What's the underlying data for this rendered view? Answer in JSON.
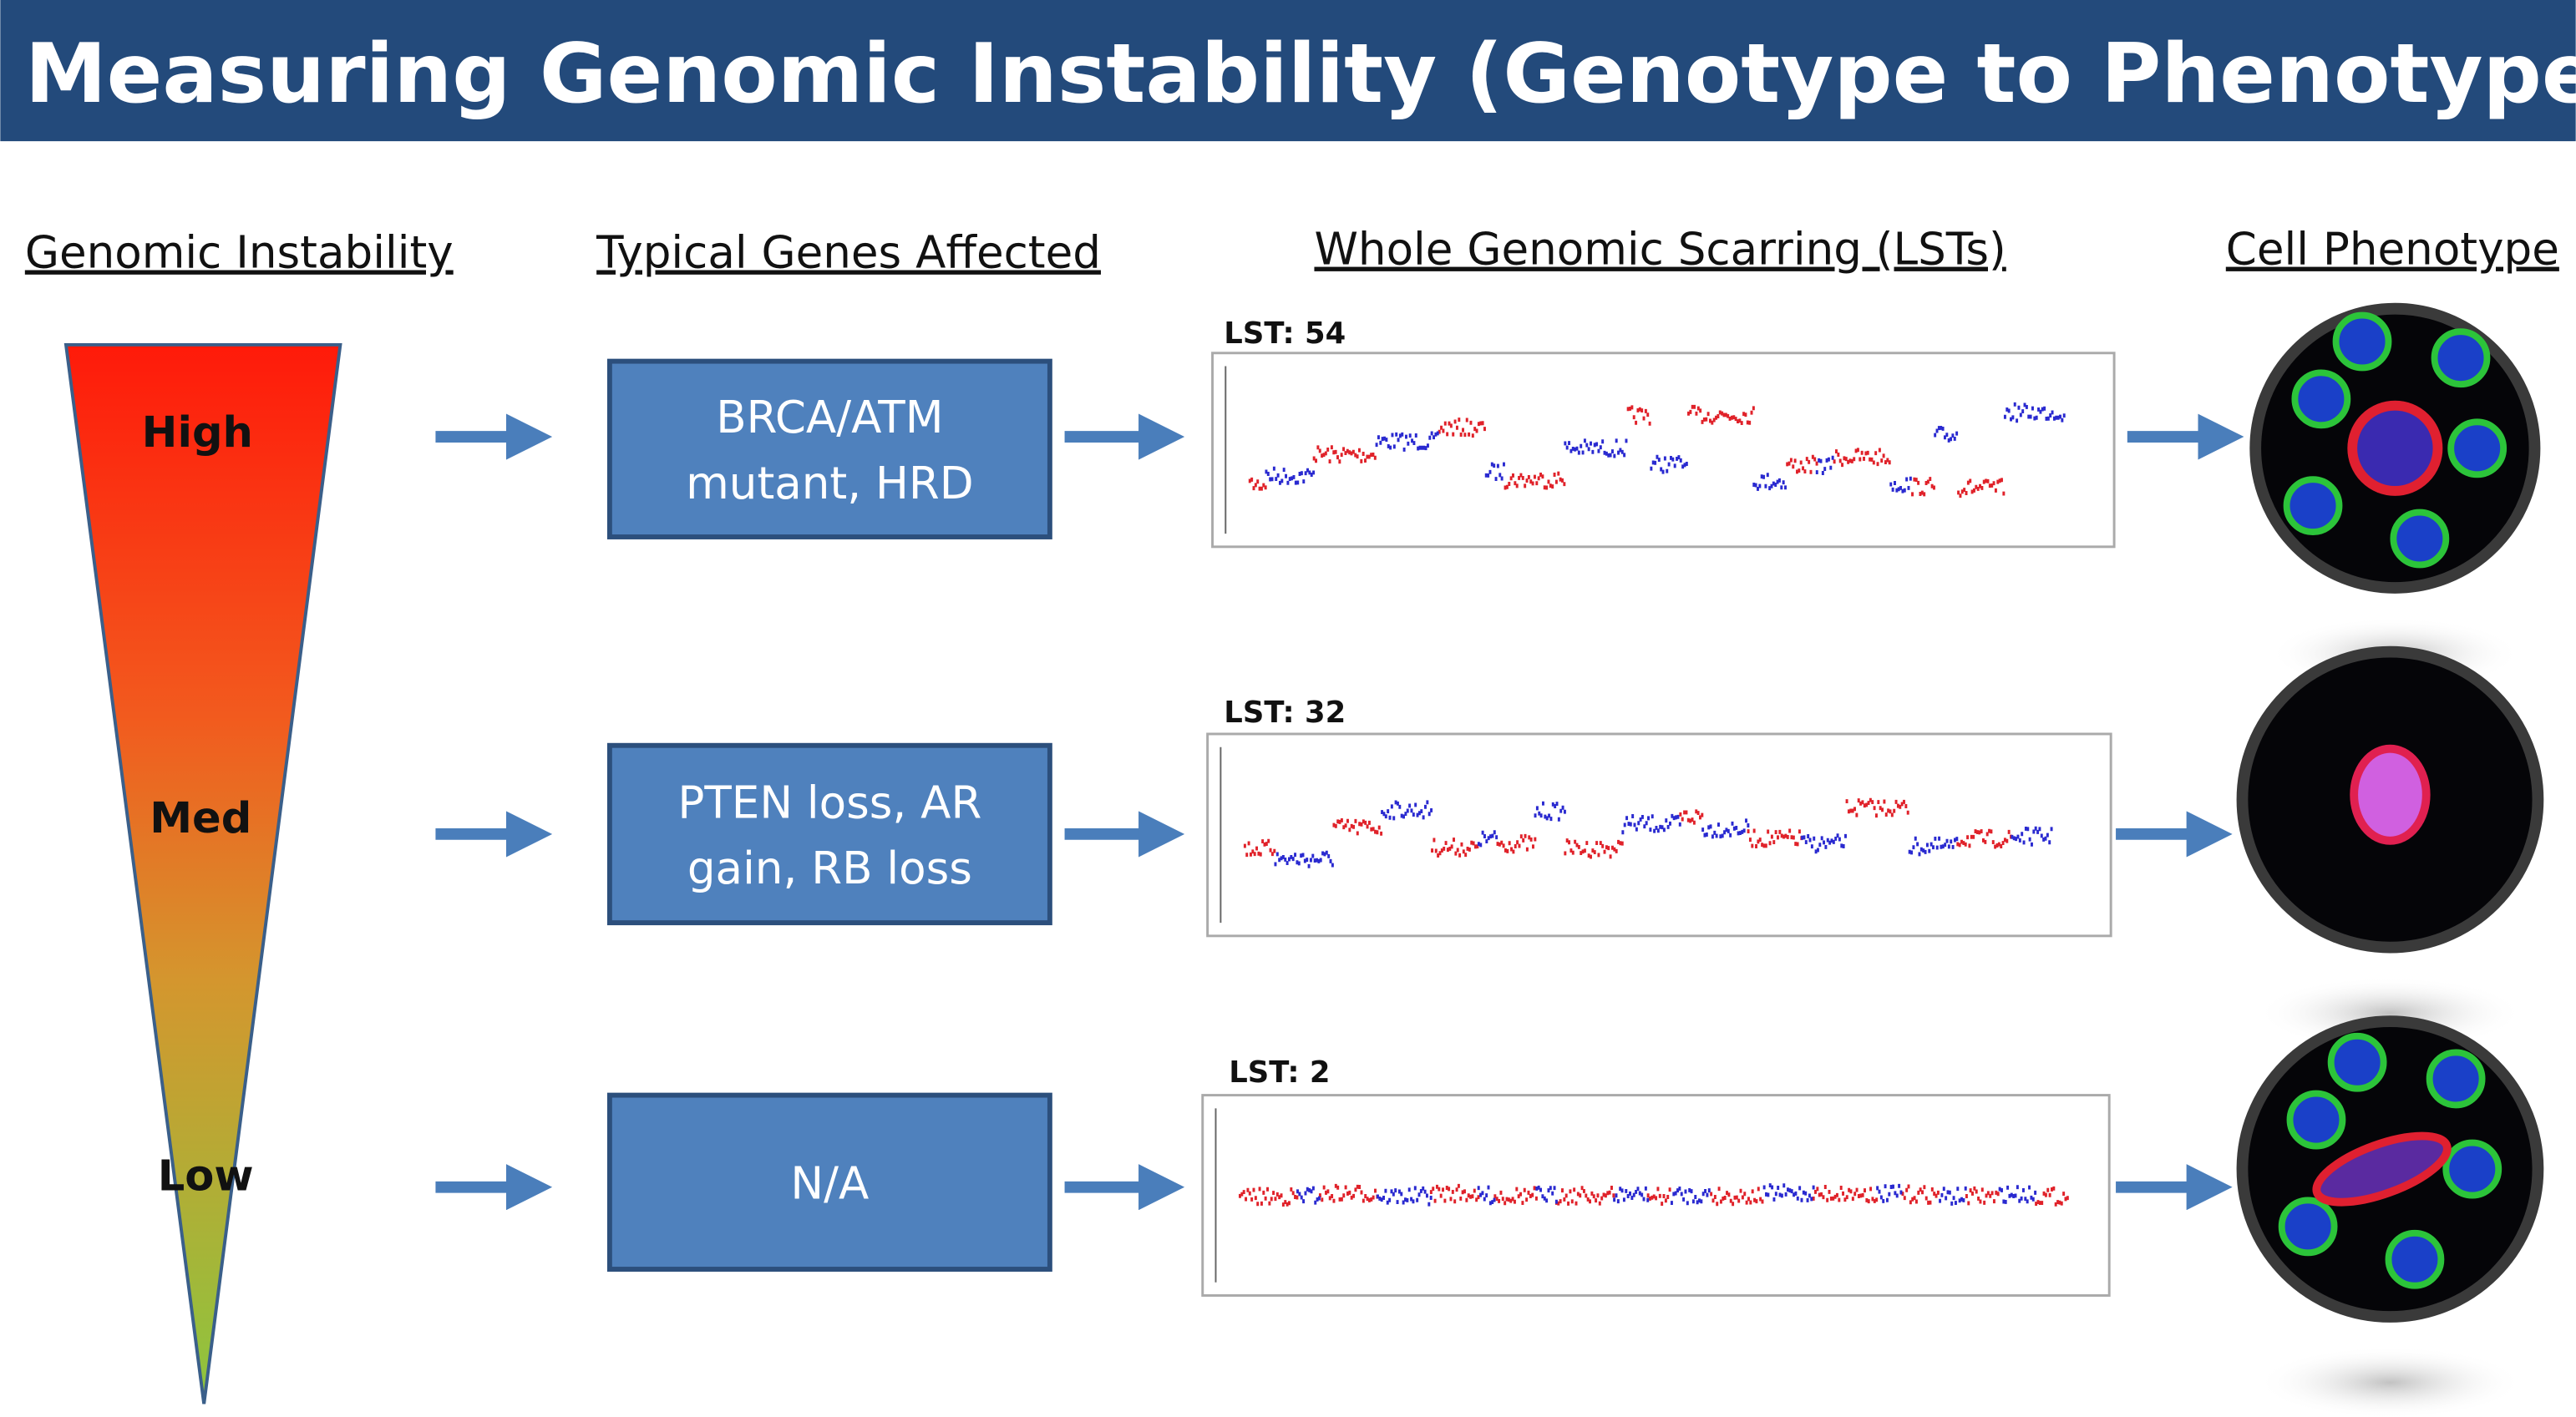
{
  "header": {
    "title": "Measuring Genomic Instability (Genotype to Phenotype)"
  },
  "columns": [
    "Genomic Instability",
    "Typical Genes Affected",
    "Whole Genomic Scarring (LSTs)",
    "Cell Phenotype"
  ],
  "rows": [
    {
      "level": "High",
      "genes": [
        "BRCA/ATM",
        "mutant, HRD"
      ],
      "lst": "LST: 54"
    },
    {
      "level": "Med",
      "genes": [
        "PTEN loss, AR",
        "gain, RB loss"
      ],
      "lst": "LST: 32"
    },
    {
      "level": "Low",
      "genes": [
        "N/A"
      ],
      "lst": "LST: 2"
    }
  ]
}
